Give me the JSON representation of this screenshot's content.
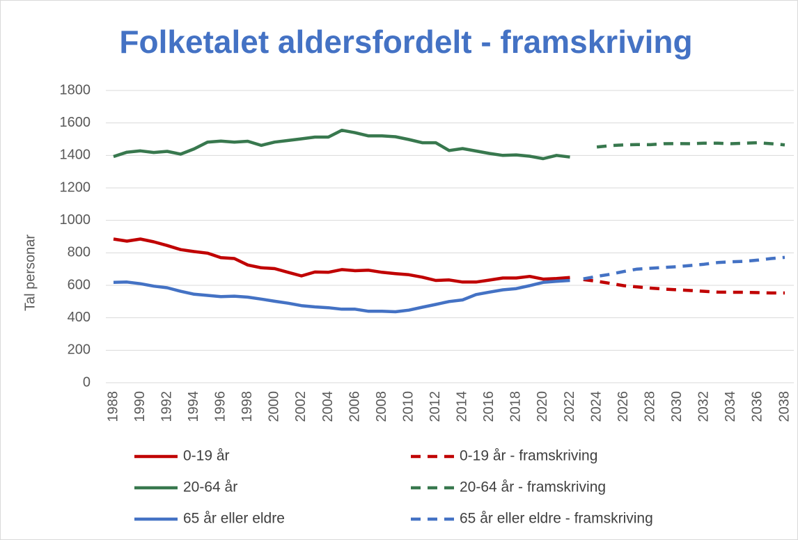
{
  "chart_data": {
    "type": "line",
    "title": "Folketalet aldersfordelt - framskriving",
    "y_label": "Tal personar",
    "x": [
      1988,
      1989,
      1990,
      1991,
      1992,
      1993,
      1994,
      1995,
      1996,
      1997,
      1998,
      1999,
      2000,
      2001,
      2002,
      2003,
      2004,
      2005,
      2006,
      2007,
      2008,
      2009,
      2010,
      2011,
      2012,
      2013,
      2014,
      2015,
      2016,
      2017,
      2018,
      2019,
      2020,
      2021,
      2022,
      2023,
      2024,
      2025,
      2026,
      2027,
      2028,
      2029,
      2030,
      2031,
      2032,
      2033,
      2034,
      2035,
      2036,
      2037,
      2038
    ],
    "xlim": [
      1988,
      2038
    ],
    "xticks": [
      1988,
      1990,
      1992,
      1994,
      1996,
      1998,
      2000,
      2002,
      2004,
      2006,
      2008,
      2010,
      2012,
      2014,
      2016,
      2018,
      2020,
      2022,
      2024,
      2026,
      2028,
      2030,
      2032,
      2034,
      2036,
      2038
    ],
    "ylim": [
      0,
      1800
    ],
    "yticks": [
      0,
      200,
      400,
      600,
      800,
      1000,
      1200,
      1400,
      1600,
      1800
    ],
    "grid": true,
    "legend": "bottom",
    "series": [
      {
        "name": "0-19 år",
        "color": "#c00000",
        "dashed": false,
        "values": [
          885,
          872,
          885,
          868,
          845,
          820,
          808,
          798,
          770,
          765,
          725,
          708,
          703,
          680,
          658,
          682,
          680,
          697,
          690,
          693,
          680,
          672,
          665,
          650,
          630,
          633,
          620,
          620,
          632,
          645,
          645,
          655,
          638,
          642,
          648,
          null,
          null,
          null,
          null,
          null,
          null,
          null,
          null,
          null,
          null,
          null,
          null,
          null,
          null,
          null,
          null
        ]
      },
      {
        "name": "0-19 år - framskriving",
        "color": "#c00000",
        "dashed": true,
        "values": [
          null,
          null,
          null,
          null,
          null,
          null,
          null,
          null,
          null,
          null,
          null,
          null,
          null,
          null,
          null,
          null,
          null,
          null,
          null,
          null,
          null,
          null,
          null,
          null,
          null,
          null,
          null,
          null,
          null,
          null,
          null,
          null,
          null,
          null,
          null,
          635,
          625,
          612,
          598,
          590,
          583,
          577,
          572,
          568,
          563,
          558,
          557,
          557,
          555,
          553,
          553
        ]
      },
      {
        "name": "20-64 år",
        "color": "#38784e",
        "dashed": false,
        "values": [
          1393,
          1420,
          1428,
          1418,
          1425,
          1408,
          1440,
          1482,
          1488,
          1482,
          1487,
          1462,
          1482,
          1492,
          1502,
          1513,
          1513,
          1555,
          1540,
          1520,
          1520,
          1515,
          1498,
          1478,
          1478,
          1430,
          1442,
          1427,
          1412,
          1400,
          1403,
          1395,
          1380,
          1400,
          1390,
          null,
          null,
          null,
          null,
          null,
          null,
          null,
          null,
          null,
          null,
          null,
          null,
          null,
          null,
          null,
          null
        ]
      },
      {
        "name": "20-64 år - framskriving",
        "color": "#38784e",
        "dashed": true,
        "values": [
          null,
          null,
          null,
          null,
          null,
          null,
          null,
          null,
          null,
          null,
          null,
          null,
          null,
          null,
          null,
          null,
          null,
          null,
          null,
          null,
          null,
          null,
          null,
          null,
          null,
          null,
          null,
          null,
          null,
          null,
          null,
          null,
          null,
          null,
          null,
          null,
          1452,
          1460,
          1465,
          1467,
          1466,
          1472,
          1473,
          1472,
          1475,
          1475,
          1472,
          1475,
          1478,
          1472,
          1465
        ]
      },
      {
        "name": "65 år eller eldre",
        "color": "#4472c4",
        "dashed": false,
        "values": [
          618,
          620,
          610,
          595,
          585,
          563,
          545,
          538,
          530,
          533,
          527,
          515,
          502,
          490,
          475,
          467,
          462,
          453,
          453,
          440,
          440,
          437,
          447,
          465,
          482,
          500,
          510,
          543,
          558,
          572,
          580,
          598,
          618,
          625,
          630,
          null,
          null,
          null,
          null,
          null,
          null,
          null,
          null,
          null,
          null,
          null,
          null,
          null,
          null,
          null,
          null
        ]
      },
      {
        "name": "65 år eller eldre - framskriving",
        "color": "#4472c4",
        "dashed": true,
        "values": [
          null,
          null,
          null,
          null,
          null,
          null,
          null,
          null,
          null,
          null,
          null,
          null,
          null,
          null,
          null,
          null,
          null,
          null,
          null,
          null,
          null,
          null,
          null,
          null,
          null,
          null,
          null,
          null,
          null,
          null,
          null,
          null,
          null,
          null,
          null,
          640,
          655,
          668,
          685,
          700,
          705,
          710,
          715,
          722,
          730,
          740,
          745,
          748,
          755,
          765,
          772
        ]
      }
    ]
  }
}
